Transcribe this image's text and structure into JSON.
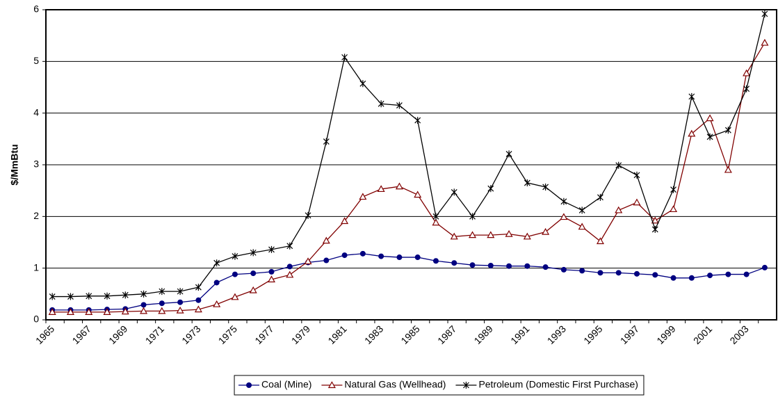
{
  "chart_data": {
    "type": "line",
    "y_label": "$/MmBtu",
    "categories": [
      "1965",
      null,
      "1967",
      null,
      "1969",
      null,
      "1971",
      null,
      "1973",
      null,
      "1975",
      null,
      "1977",
      null,
      "1979",
      null,
      "1981",
      null,
      "1983",
      null,
      "1985",
      null,
      "1987",
      null,
      "1989",
      null,
      "1991",
      null,
      "1993",
      null,
      "1995",
      null,
      "1997",
      null,
      "1999",
      null,
      "2001",
      null,
      "2003",
      null
    ],
    "series": [
      {
        "name": "Coal (Mine)",
        "color": "#000080",
        "marker": "circle",
        "values": [
          0.19,
          0.19,
          0.19,
          0.2,
          0.21,
          0.29,
          0.32,
          0.34,
          0.38,
          0.72,
          0.88,
          0.9,
          0.93,
          1.03,
          1.11,
          1.15,
          1.25,
          1.28,
          1.23,
          1.21,
          1.21,
          1.14,
          1.1,
          1.06,
          1.05,
          1.04,
          1.04,
          1.02,
          0.97,
          0.95,
          0.91,
          0.91,
          0.89,
          0.87,
          0.81,
          0.81,
          0.86,
          0.88,
          0.88,
          1.01
        ]
      },
      {
        "name": "Natural Gas (Wellhead)",
        "color": "#800000",
        "marker": "triangle",
        "values": [
          0.15,
          0.15,
          0.15,
          0.15,
          0.16,
          0.17,
          0.17,
          0.18,
          0.2,
          0.3,
          0.44,
          0.57,
          0.78,
          0.87,
          1.13,
          1.53,
          1.91,
          2.38,
          2.53,
          2.58,
          2.42,
          1.88,
          1.61,
          1.64,
          1.64,
          1.66,
          1.61,
          1.7,
          1.99,
          1.8,
          1.52,
          2.12,
          2.27,
          1.92,
          2.14,
          3.6,
          3.9,
          2.9,
          4.77,
          5.36
        ]
      },
      {
        "name": "Petroleum (Domestic First Purchase)",
        "color": "#000000",
        "marker": "star",
        "values": [
          0.45,
          0.45,
          0.46,
          0.46,
          0.48,
          0.5,
          0.55,
          0.55,
          0.63,
          1.1,
          1.23,
          1.3,
          1.36,
          1.43,
          2.02,
          3.45,
          5.08,
          4.57,
          4.18,
          4.15,
          3.86,
          2.0,
          2.47,
          2.0,
          2.54,
          3.21,
          2.65,
          2.57,
          2.29,
          2.12,
          2.37,
          2.99,
          2.8,
          1.75,
          2.52,
          4.32,
          3.54,
          3.67,
          4.47,
          5.92
        ]
      }
    ],
    "ylim": [
      0,
      6
    ],
    "yticks": [
      0,
      1,
      2,
      3,
      4,
      5,
      6
    ],
    "grid": true,
    "legend": "bottom"
  }
}
